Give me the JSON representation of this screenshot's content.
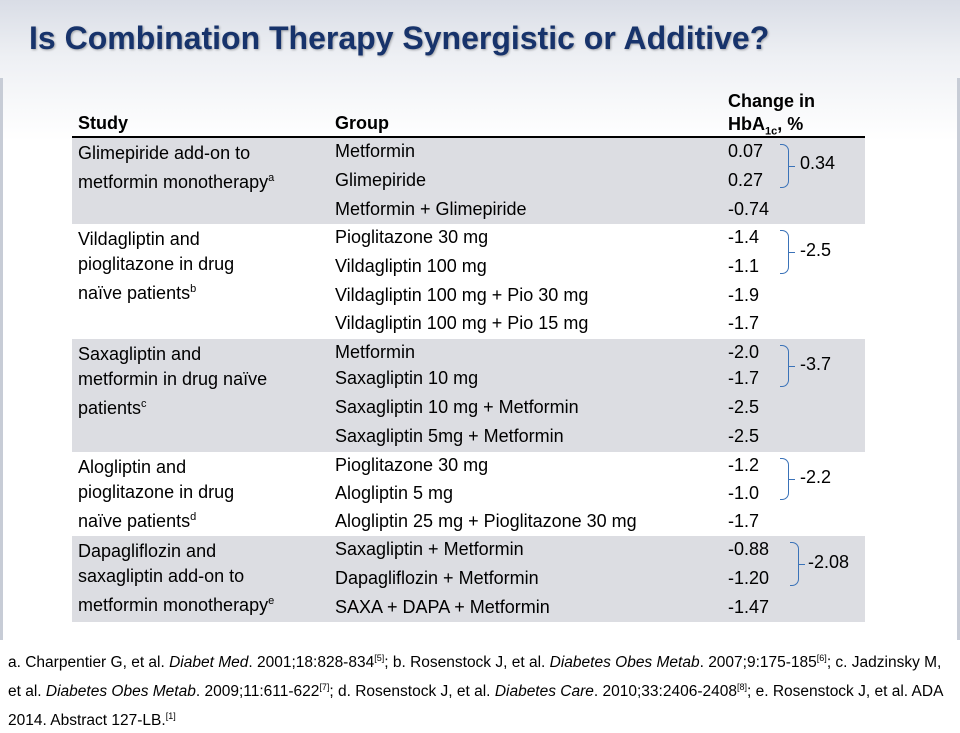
{
  "title": "Is Combination Therapy Synergistic or Additive?",
  "table": {
    "headers": {
      "study": "Study",
      "group": "Group",
      "change_line1": "Change in",
      "change_line2_pre": "HbA",
      "change_sub": "1c",
      "change_line2_post": ", %"
    },
    "sections": [
      {
        "study_lines": [
          "Glimepiride add-on to",
          "metformin monotherapy"
        ],
        "study_sup": "a",
        "rows": [
          {
            "group": "Metformin",
            "value": "0.07"
          },
          {
            "group": "Glimepiride",
            "value": "0.27"
          },
          {
            "group": "Metformin + Glimepiride",
            "value": "-0.74"
          }
        ],
        "combined": "0.34"
      },
      {
        "study_lines": [
          "Vildagliptin and",
          "pioglitazone in drug",
          "naïve patients"
        ],
        "study_sup": "b",
        "rows": [
          {
            "group": "Pioglitazone 30 mg",
            "value": "-1.4"
          },
          {
            "group": "Vildagliptin 100 mg",
            "value": "-1.1"
          },
          {
            "group": "Vildagliptin 100 mg + Pio 30 mg",
            "value": "-1.9"
          },
          {
            "group": "Vildagliptin 100 mg + Pio 15 mg",
            "value": "-1.7"
          }
        ],
        "combined": "-2.5"
      },
      {
        "study_lines": [
          "Saxagliptin and",
          "metformin in drug naïve",
          "patients"
        ],
        "study_sup": "c",
        "rows": [
          {
            "group": "Metformin",
            "value": "-2.0"
          },
          {
            "group": "Saxagliptin 10 mg",
            "value": "-1.7"
          },
          {
            "group": "Saxagliptin 10 mg + Metformin",
            "value": "-2.5"
          },
          {
            "group": "Saxagliptin 5mg + Metformin",
            "value": "-2.5"
          }
        ],
        "combined": "-3.7"
      },
      {
        "study_lines": [
          "Alogliptin and",
          "pioglitazone in drug",
          "naïve patients"
        ],
        "study_sup": "d",
        "rows": [
          {
            "group": "Pioglitazone 30 mg",
            "value": "-1.2"
          },
          {
            "group": "Alogliptin 5 mg",
            "value": "-1.0"
          },
          {
            "group": "Alogliptin 25 mg + Pioglitazone 30 mg",
            "value": "-1.7"
          }
        ],
        "combined": "-2.2"
      },
      {
        "study_lines": [
          "Dapagliflozin and",
          "saxagliptin add-on to",
          "metformin monotherapy"
        ],
        "study_sup": "e",
        "rows": [
          {
            "group": "Saxagliptin + Metformin",
            "value": "-0.88"
          },
          {
            "group": "Dapagliflozin + Metformin",
            "value": "-1.20"
          },
          {
            "group": "SAXA + DAPA + Metformin",
            "value": "-1.47"
          }
        ],
        "combined": "-2.08"
      }
    ]
  },
  "footnote": {
    "a_text": "a. Charpentier G, et al. ",
    "a_journal": "Diabet Med",
    "a_cite": ". 2001;18:828-834",
    "a_ref": "[5]",
    "b_text": "; b. Rosenstock J, et al. ",
    "b_journal": "Diabetes Obes Metab",
    "b_cite": ". 2007;9:175-185",
    "b_ref": "[6]",
    "c_text": "; c. Jadzinsky M, et al. ",
    "c_journal": "Diabetes Obes Metab",
    "c_cite": ". 2009;11:611-622",
    "c_ref": "[7]",
    "d_text": "; d. Rosenstock J, et al. ",
    "d_journal": "Diabetes Care",
    "d_cite": ". 2010;33:2406-2408",
    "d_ref": "[8]",
    "e_text": "; e. Rosenstock J, et al. ADA 2014. Abstract 127-LB.",
    "e_ref": "[1]"
  }
}
